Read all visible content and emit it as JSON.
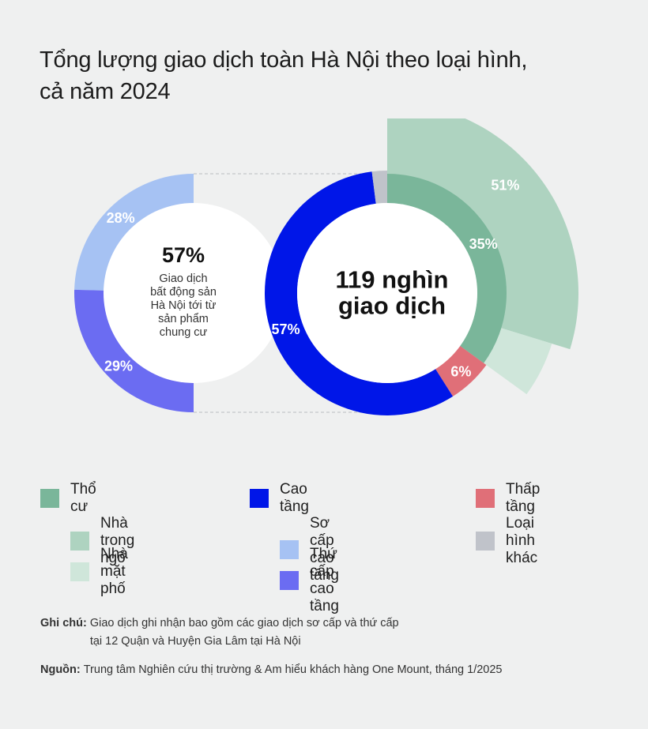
{
  "title": {
    "line1": "Tổng lượng giao dịch toàn Hà Nội theo loại hình,",
    "line2": "cả năm 2024"
  },
  "chart_data": [
    {
      "type": "pie",
      "variant": "half-donut",
      "slices": [
        {
          "label": "Sơ cấp cao tầng",
          "value": 28,
          "display": "28%",
          "color": "#a6c2f3"
        },
        {
          "label": "Thứ cấp cao tầng",
          "value": 29,
          "display": "29%",
          "color": "#6b6cf2"
        }
      ],
      "center": {
        "value": "57%",
        "text": [
          "Giao dịch",
          "bất động sản",
          "Hà Nội tới từ",
          "sản phẩm",
          "chung cư"
        ]
      }
    },
    {
      "type": "pie",
      "variant": "donut",
      "center": {
        "lines": [
          "119 nghìn",
          "giao dịch"
        ]
      },
      "slices": [
        {
          "label": "Thổ cư",
          "value": 35,
          "display": "35%",
          "color": "#7ab69a"
        },
        {
          "label": "Thấp tầng",
          "value": 6,
          "display": "6%",
          "color": "#e06f78"
        },
        {
          "label": "Cao tầng",
          "value": 57,
          "display": "57%",
          "color": "#0016e8"
        },
        {
          "label": "Loại hình khác",
          "value": 2,
          "display": "",
          "color": "#c0c3ca"
        }
      ],
      "outer_breakdown": {
        "parent": "Thổ cư",
        "slices": [
          {
            "label": "Nhà trong ngõ",
            "value": 51,
            "display": "51%",
            "color": "#aed3c0"
          },
          {
            "label": "Nhà mặt phố",
            "value": 9,
            "display": "",
            "color": "#cfe6da"
          }
        ]
      }
    }
  ],
  "legend": [
    {
      "label": "Thổ cư",
      "color": "#7ab69a"
    },
    {
      "label": "Cao tầng",
      "color": "#0016e8"
    },
    {
      "label": "Thấp tầng",
      "color": "#e06f78"
    },
    {
      "label": "Nhà trong ngõ",
      "color": "#aed3c0"
    },
    {
      "label": "Sơ cấp cao tầng",
      "color": "#a6c2f3"
    },
    {
      "label": "Loại hình khác",
      "color": "#c0c3ca"
    },
    {
      "label": "Nhà mặt phố",
      "color": "#cfe6da"
    },
    {
      "label": "Thứ cấp cao tầng",
      "color": "#6b6cf2"
    }
  ],
  "notes": {
    "note_label": "Ghi chú:",
    "note_line1": "Giao dịch ghi nhận bao gồm các giao dịch sơ cấp và thứ cấp",
    "note_line2": "tại 12 Quận và Huyện Gia Lâm tại Hà Nội",
    "source_label": "Nguồn:",
    "source_text": "Trung tâm Nghiên cứu thị trường & Am hiểu khách hàng One Mount, tháng 1/2025"
  }
}
